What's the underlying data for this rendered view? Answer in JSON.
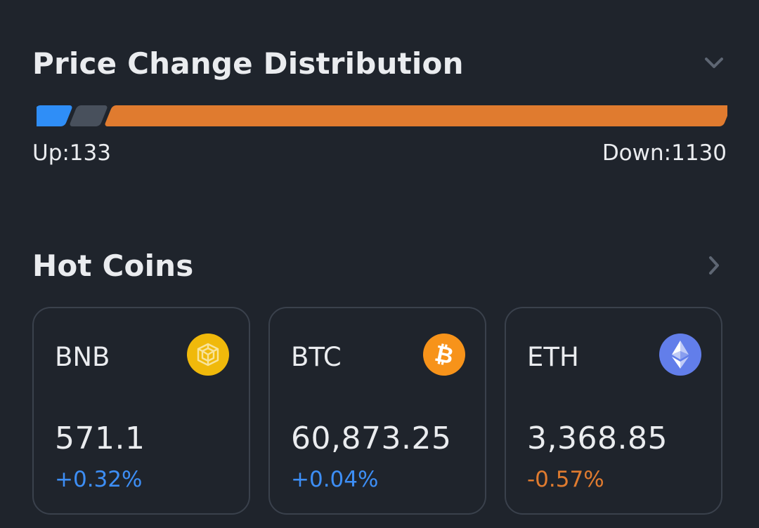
{
  "price_distribution": {
    "title": "Price Change Distribution",
    "up_label": "Up:133",
    "down_label": "Down:1130",
    "up_count": 133,
    "down_count": 1130,
    "colors": {
      "up": "#2f8ef7",
      "flat": "#48505c",
      "down": "#e07b2f"
    },
    "expand_icon": "chevron-down-icon"
  },
  "hot_coins": {
    "title": "Hot Coins",
    "more_icon": "chevron-right-icon",
    "coins": [
      {
        "symbol": "BNB",
        "price": "571.1",
        "change": "+0.32%",
        "change_color": "#3d8ef5",
        "icon": "bnb-icon",
        "icon_color": "#f0b90b"
      },
      {
        "symbol": "BTC",
        "price": "60,873.25",
        "change": "+0.04%",
        "change_color": "#3d8ef5",
        "icon": "bitcoin-icon",
        "icon_color": "#f7931a"
      },
      {
        "symbol": "ETH",
        "price": "3,368.85",
        "change": "-0.57%",
        "change_color": "#e07b2f",
        "icon": "ethereum-icon",
        "icon_color": "#627eea"
      }
    ]
  }
}
